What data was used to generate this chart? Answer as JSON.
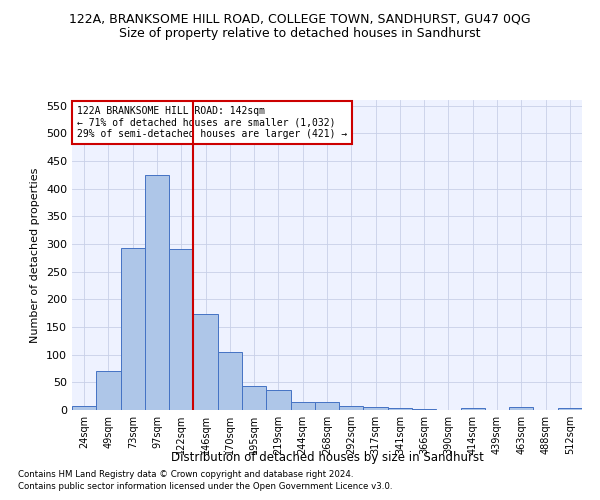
{
  "title1": "122A, BRANKSOME HILL ROAD, COLLEGE TOWN, SANDHURST, GU47 0QG",
  "title2": "Size of property relative to detached houses in Sandhurst",
  "xlabel": "Distribution of detached houses by size in Sandhurst",
  "ylabel": "Number of detached properties",
  "categories": [
    "24sqm",
    "49sqm",
    "73sqm",
    "97sqm",
    "122sqm",
    "146sqm",
    "170sqm",
    "195sqm",
    "219sqm",
    "244sqm",
    "268sqm",
    "292sqm",
    "317sqm",
    "341sqm",
    "366sqm",
    "390sqm",
    "414sqm",
    "439sqm",
    "463sqm",
    "488sqm",
    "512sqm"
  ],
  "values": [
    8,
    70,
    293,
    425,
    290,
    173,
    105,
    44,
    37,
    15,
    15,
    8,
    5,
    4,
    1,
    0,
    4,
    0,
    5,
    0,
    3
  ],
  "bar_color": "#aec6e8",
  "bar_edge_color": "#4472c4",
  "vline_x": 4.5,
  "vline_color": "#cc0000",
  "ylim": [
    0,
    560
  ],
  "yticks": [
    0,
    50,
    100,
    150,
    200,
    250,
    300,
    350,
    400,
    450,
    500,
    550
  ],
  "annotation_line1": "122A BRANKSOME HILL ROAD: 142sqm",
  "annotation_line2": "← 71% of detached houses are smaller (1,032)",
  "annotation_line3": "29% of semi-detached houses are larger (421) →",
  "annotation_box_color": "#ffffff",
  "annotation_box_edge": "#cc0000",
  "footnote1": "Contains HM Land Registry data © Crown copyright and database right 2024.",
  "footnote2": "Contains public sector information licensed under the Open Government Licence v3.0.",
  "bg_color": "#eef2ff",
  "fig_bg_color": "#ffffff",
  "title1_fontsize": 9,
  "title2_fontsize": 9,
  "grid_color": "#c8d0e8"
}
